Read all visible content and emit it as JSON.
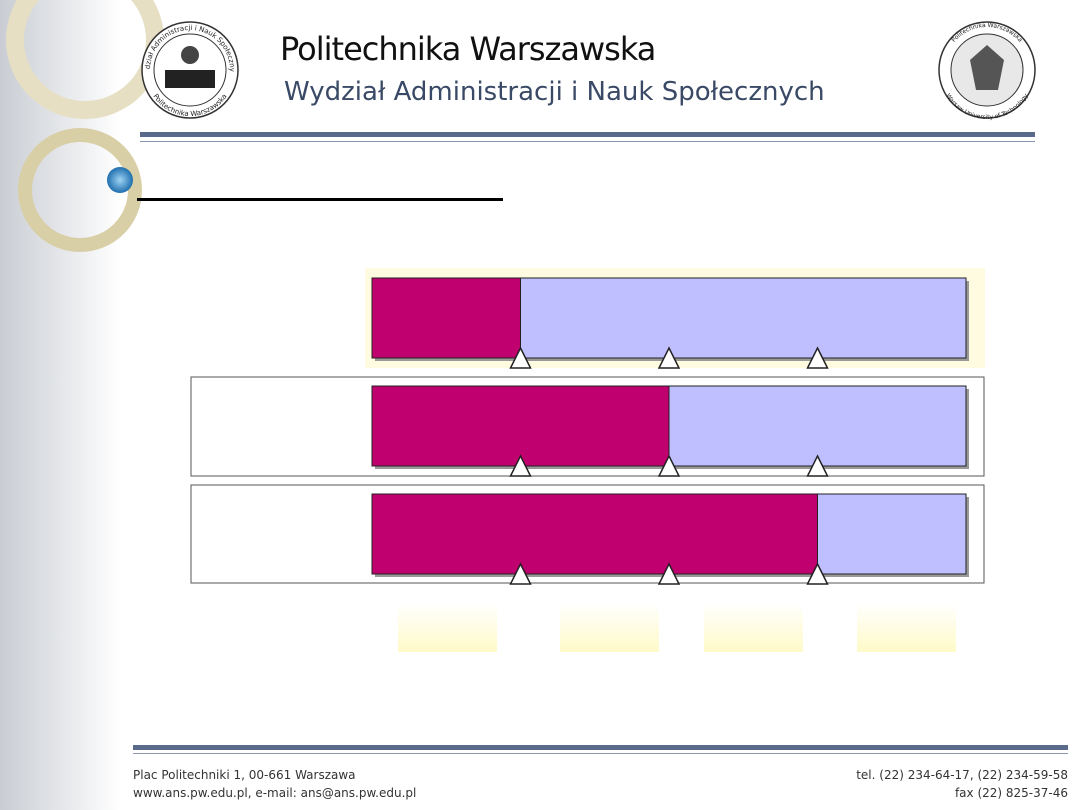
{
  "header": {
    "title": "Politechnika Warszawska",
    "subtitle": "Wydział Administracji i Nauk Społecznych"
  },
  "logos": {
    "left": {
      "top": "Wydział Administracji i Nauk Społecznych",
      "bottom": "Politechnika Warszawska"
    },
    "right": {
      "top": "Politechnika Warszawska",
      "bottom": "Warsaw University of Technology"
    }
  },
  "diagram": {
    "scale": [
      0,
      100
    ],
    "bars": [
      25,
      50,
      75
    ],
    "markers": [
      25,
      50,
      75
    ],
    "fill_color": "#c0006e",
    "rest_color": "#bfbfff"
  },
  "footer": {
    "left": [
      "Plac Politechniki 1, 00-661 Warszawa",
      "www.ans.pw.edu.pl, e-mail: ans@ans.pw.edu.pl"
    ],
    "right": [
      "tel. (22) 234-64-17, (22) 234-59-58",
      "fax (22) 825-37-46"
    ]
  }
}
